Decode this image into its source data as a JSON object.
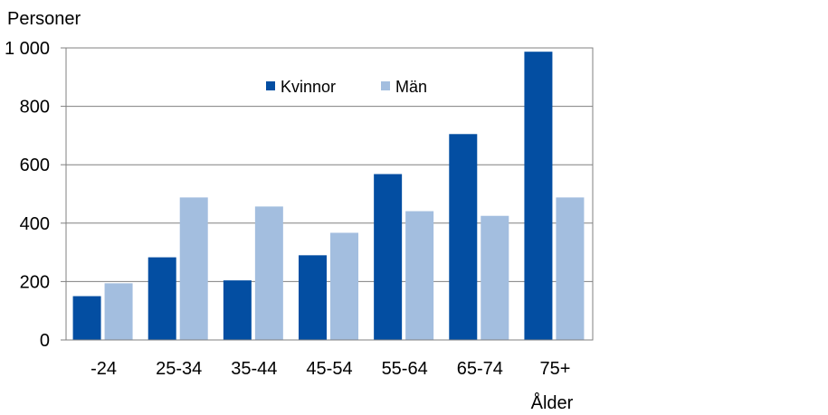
{
  "chart_data": {
    "type": "bar",
    "title": "",
    "ylabel": "Personer",
    "xlabel": "Ålder",
    "ylim": [
      0,
      1000
    ],
    "yticks": [
      0,
      200,
      400,
      600,
      800,
      1000
    ],
    "ytick_labels": [
      "0",
      "200",
      "400",
      "600",
      "800",
      "1 000"
    ],
    "grid": true,
    "legend_position": "top-center",
    "categories": [
      "-24",
      "25-34",
      "35-44",
      "45-54",
      "55-64",
      "65-74",
      "75+"
    ],
    "series": [
      {
        "name": "Kvinnor",
        "color": "#034ea2",
        "values": [
          150,
          283,
          204,
          290,
          568,
          705,
          987
        ]
      },
      {
        "name": "Män",
        "color": "#a3bedf",
        "values": [
          194,
          488,
          457,
          367,
          441,
          425,
          488
        ]
      }
    ]
  }
}
